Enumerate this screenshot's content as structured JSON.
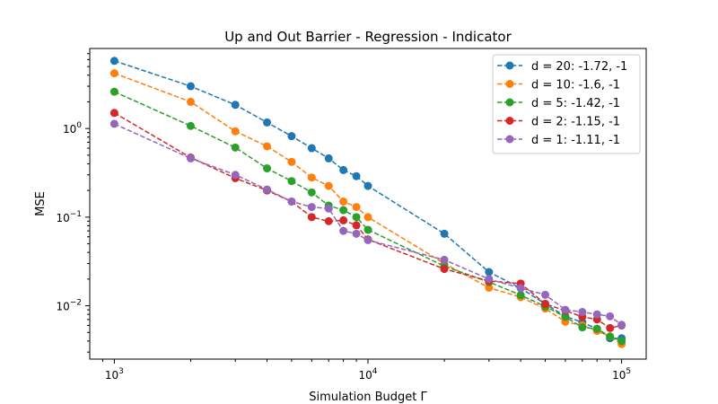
{
  "chart_data": {
    "type": "line",
    "title": "Up and Out Barrier - Regression - Indicator",
    "xlabel": "Simulation Budget Γ",
    "ylabel": "MSE",
    "xscale": "log",
    "yscale": "log",
    "xlim": [
      800,
      125000
    ],
    "ylim": [
      0.0025,
      8.0
    ],
    "grid": false,
    "legend_position": "top-right",
    "x_ticks": [
      {
        "value": 1000,
        "base": "10",
        "exp": "3"
      },
      {
        "value": 10000,
        "base": "10",
        "exp": "4"
      },
      {
        "value": 100000,
        "base": "10",
        "exp": "5"
      }
    ],
    "y_ticks": [
      {
        "value": 0.01,
        "base": "10",
        "exp": "−2"
      },
      {
        "value": 0.1,
        "base": "10",
        "exp": "−1"
      },
      {
        "value": 1,
        "base": "10",
        "exp": "0"
      }
    ],
    "x": [
      1000,
      2000,
      3000,
      4000,
      5000,
      6000,
      7000,
      8000,
      9000,
      10000,
      20000,
      30000,
      40000,
      50000,
      60000,
      70000,
      80000,
      90000,
      100000
    ],
    "series": [
      {
        "name": "d = 20: -1.72, -1",
        "color": "#1f77b4",
        "values": [
          5.8,
          3.0,
          1.85,
          1.17,
          0.82,
          0.6,
          0.46,
          0.34,
          0.29,
          0.225,
          0.065,
          0.024,
          0.0158,
          0.0105,
          0.0076,
          0.0065,
          0.0055,
          0.0043,
          0.0043
        ]
      },
      {
        "name": "d = 10: -1.6, -1",
        "color": "#ff7f0e",
        "values": [
          4.2,
          2.0,
          0.93,
          0.63,
          0.42,
          0.28,
          0.225,
          0.15,
          0.13,
          0.1,
          0.03,
          0.016,
          0.0125,
          0.0093,
          0.0066,
          0.006,
          0.0052,
          0.0045,
          0.0037
        ]
      },
      {
        "name": "d = 5: -1.42, -1",
        "color": "#2ca02c",
        "values": [
          2.6,
          1.07,
          0.61,
          0.355,
          0.255,
          0.19,
          0.135,
          0.12,
          0.1,
          0.072,
          0.028,
          0.0185,
          0.0132,
          0.0098,
          0.0075,
          0.0057,
          0.0055,
          0.0045,
          0.004
        ]
      },
      {
        "name": "d = 2: -1.15, -1",
        "color": "#d62728",
        "values": [
          1.5,
          0.47,
          0.275,
          0.2,
          0.15,
          0.1,
          0.09,
          0.092,
          0.081,
          0.056,
          0.026,
          0.019,
          0.0178,
          0.0105,
          0.0088,
          0.0075,
          0.007,
          0.0056,
          0.006
        ]
      },
      {
        "name": "d = 1: -1.11, -1",
        "color": "#9467bd",
        "values": [
          1.13,
          0.46,
          0.3,
          0.205,
          0.15,
          0.13,
          0.125,
          0.07,
          0.065,
          0.055,
          0.033,
          0.02,
          0.0158,
          0.0133,
          0.009,
          0.0085,
          0.008,
          0.0076,
          0.0061
        ]
      }
    ]
  }
}
